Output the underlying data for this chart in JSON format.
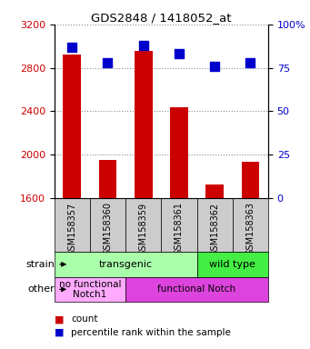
{
  "title": "GDS2848 / 1418052_at",
  "samples": [
    "GSM158357",
    "GSM158360",
    "GSM158359",
    "GSM158361",
    "GSM158362",
    "GSM158363"
  ],
  "counts": [
    2920,
    1950,
    2960,
    2440,
    1720,
    1930
  ],
  "percentiles": [
    87,
    78,
    88,
    83,
    76,
    78
  ],
  "ylim_left": [
    1600,
    3200
  ],
  "ylim_right": [
    0,
    100
  ],
  "yticks_left": [
    1600,
    2000,
    2400,
    2800,
    3200
  ],
  "yticks_right": [
    0,
    25,
    50,
    75,
    100
  ],
  "bar_color": "#cc0000",
  "dot_color": "#0000cc",
  "strain_labels": [
    {
      "text": "transgenic",
      "cols": [
        0,
        1,
        2,
        3
      ],
      "color": "#aaffaa"
    },
    {
      "text": "wild type",
      "cols": [
        4,
        5
      ],
      "color": "#44ee44"
    }
  ],
  "other_labels": [
    {
      "text": "no functional\nNotch1",
      "cols": [
        0,
        1
      ],
      "color": "#ffaaff"
    },
    {
      "text": "functional Notch",
      "cols": [
        2,
        3,
        4,
        5
      ],
      "color": "#dd44dd"
    }
  ],
  "strain_row_label": "strain",
  "other_row_label": "other",
  "legend_count_label": "count",
  "legend_pct_label": "percentile rank within the sample",
  "tick_label_color_left": "#cc0000",
  "tick_label_color_right": "#0000cc",
  "grid_color": "#888888",
  "bar_width": 0.5,
  "dot_size": 45,
  "xtick_bg": "#cccccc",
  "xtick_height": 0.085
}
